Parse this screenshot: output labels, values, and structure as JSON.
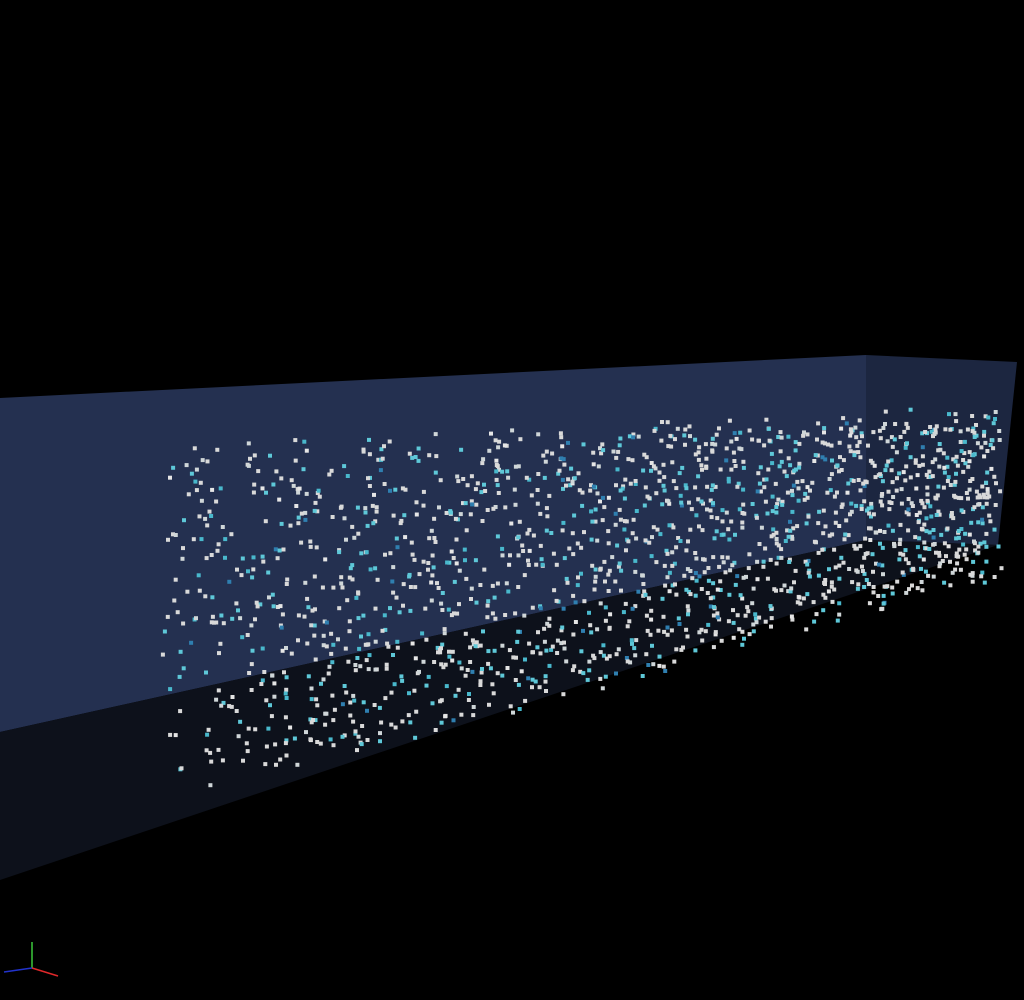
{
  "scene": {
    "background_color": "#000000",
    "box": {
      "face_colors": {
        "back": "#243050",
        "end": "#1c2640",
        "floor": "#0d111b",
        "front_dim": "#0f1420"
      },
      "edge_color": "#2e3a5c"
    },
    "particles": {
      "count": 1800,
      "colors": [
        "#d9d9d9",
        "#cfd6d8",
        "#5ec8d8",
        "#49b8cc",
        "#2f7fb0",
        "#e6e6e6"
      ],
      "color_weights": [
        0.5,
        0.15,
        0.2,
        0.08,
        0.03,
        0.04
      ]
    },
    "axes_gizmo": {
      "x_color": "#e0282a",
      "y_color": "#3ac83a",
      "z_color": "#2233cc"
    }
  }
}
